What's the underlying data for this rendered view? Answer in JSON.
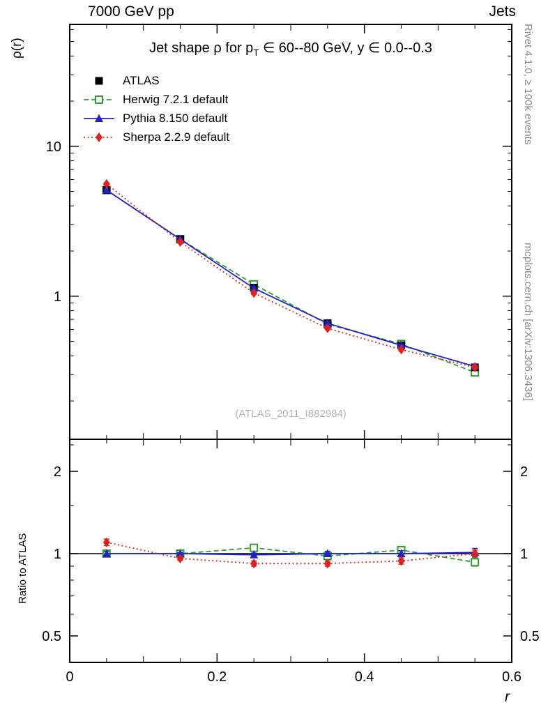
{
  "header": {
    "left": "7000 GeV pp",
    "right": "Jets"
  },
  "title": {
    "pre": "Jet shape ρ for p",
    "sub": "T",
    "post": " ∈ 60--80 GeV, y ∈ 0.0--0.3"
  },
  "ylabel_main": "ρ(r)",
  "ylabel_ratio": "Ratio to ATLAS",
  "xlabel": "r",
  "watermark": "(ATLAS_2011_I882984)",
  "side_notes": {
    "top": "Rivet 4.1.0, ≥ 100k events",
    "bottom": "mcplots.cern.ch [arXiv:1306.3436]"
  },
  "chart_data": {
    "type": "line",
    "title": "Jet shape ρ for p_T ∈ 60--80 GeV, y ∈ 0.0--0.3",
    "xlabel": "r",
    "ylabel": "ρ(r)",
    "ratio_ylabel": "Ratio to ATLAS",
    "x": [
      0.05,
      0.15,
      0.25,
      0.35,
      0.45,
      0.55
    ],
    "xlim": [
      0,
      0.6
    ],
    "x_major_ticks": [
      0,
      0.2,
      0.4,
      0.6
    ],
    "x_mid_ticks": [
      0.1,
      0.3,
      0.5
    ],
    "x_minor_ticks": [
      0.05,
      0.15,
      0.25,
      0.35,
      0.45,
      0.55
    ],
    "main_axis": {
      "scale": "log",
      "lim": [
        0.111,
        65
      ],
      "major_ticks": [
        1,
        10
      ],
      "minor_ticks": [
        0.2,
        0.3,
        0.4,
        0.5,
        0.6,
        0.7,
        0.8,
        0.9,
        2,
        3,
        4,
        5,
        6,
        7,
        8,
        9,
        20,
        30,
        40,
        50,
        60
      ]
    },
    "ratio_axis": {
      "scale": "log",
      "lim": [
        0.4,
        2.62
      ],
      "major_ticks": [
        0.5,
        1,
        2
      ],
      "minor_ticks": [
        0.6,
        0.7,
        0.8,
        0.9,
        1.5,
        2.5
      ],
      "reference_line": 1
    },
    "series": [
      {
        "name": "ATLAS",
        "color": "#000000",
        "marker": "square",
        "marker_filled": true,
        "line_style": "none",
        "values": [
          5.1,
          2.4,
          1.14,
          0.66,
          0.47,
          0.335
        ],
        "errors": [
          0.12,
          0.06,
          0.03,
          0.018,
          0.013,
          0.01
        ],
        "ratio": null
      },
      {
        "name": "Herwig 7.2.1 default",
        "color": "#2ca02c",
        "marker": "square",
        "marker_filled": false,
        "line_style": "dashed",
        "values": [
          5.1,
          2.4,
          1.2,
          0.65,
          0.48,
          0.31
        ],
        "errors": [
          0.08,
          0.04,
          0.02,
          0.012,
          0.01,
          0.009
        ],
        "ratio": [
          1.0,
          1.0,
          1.05,
          0.98,
          1.03,
          0.93
        ],
        "ratio_errors": [
          0.02,
          0.01,
          0.02,
          0.02,
          0.02,
          0.03
        ]
      },
      {
        "name": "Pythia 8.150 default",
        "color": "#2222cc",
        "marker": "triangle",
        "marker_filled": true,
        "line_style": "solid",
        "values": [
          5.1,
          2.4,
          1.13,
          0.66,
          0.47,
          0.34
        ],
        "errors": [
          0.08,
          0.04,
          0.02,
          0.012,
          0.01,
          0.009
        ],
        "ratio": [
          1.0,
          1.0,
          0.99,
          1.0,
          1.0,
          1.01
        ],
        "ratio_errors": [
          0.02,
          0.01,
          0.015,
          0.02,
          0.025,
          0.035
        ]
      },
      {
        "name": "Sherpa 2.2.9 default",
        "color": "#e02020",
        "marker": "diamond",
        "marker_filled": true,
        "line_style": "dotted",
        "values": [
          5.6,
          2.3,
          1.05,
          0.61,
          0.44,
          0.335
        ],
        "errors": [
          0.1,
          0.04,
          0.02,
          0.012,
          0.01,
          0.009
        ],
        "ratio": [
          1.1,
          0.96,
          0.92,
          0.92,
          0.94,
          1.0
        ],
        "ratio_errors": [
          0.03,
          0.015,
          0.02,
          0.02,
          0.025,
          0.03
        ]
      }
    ]
  }
}
